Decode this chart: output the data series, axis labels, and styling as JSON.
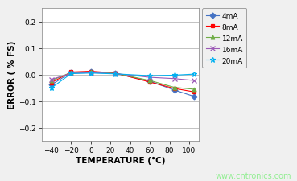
{
  "xlabel": "TEMPERATURE (°C)",
  "ylabel": "ERROR ( % FS)",
  "watermark": "www.cntronics.com",
  "xlim": [
    -50,
    110
  ],
  "ylim": [
    -0.25,
    0.25
  ],
  "yticks": [
    -0.2,
    -0.1,
    0.0,
    0.1,
    0.2
  ],
  "xticks": [
    -40,
    -20,
    0,
    20,
    40,
    60,
    80,
    100
  ],
  "series": [
    {
      "label": "4mA",
      "color": "#4472C4",
      "marker": "D",
      "markersize": 3.5,
      "x": [
        -40,
        -20,
        0,
        25,
        60,
        85,
        105
      ],
      "y": [
        -0.038,
        0.008,
        0.01,
        0.005,
        -0.025,
        -0.058,
        -0.082
      ]
    },
    {
      "label": "8mA",
      "color": "#FF0000",
      "marker": "s",
      "markersize": 3.5,
      "x": [
        -40,
        -20,
        0,
        25,
        60,
        85,
        105
      ],
      "y": [
        -0.03,
        0.01,
        0.013,
        0.006,
        -0.028,
        -0.052,
        -0.065
      ]
    },
    {
      "label": "12mA",
      "color": "#70AD47",
      "marker": "^",
      "markersize": 3.5,
      "x": [
        -40,
        -20,
        0,
        25,
        60,
        85,
        105
      ],
      "y": [
        -0.022,
        0.008,
        0.01,
        0.005,
        -0.022,
        -0.048,
        -0.055
      ]
    },
    {
      "label": "16mA",
      "color": "#9B59B6",
      "marker": "x",
      "markersize": 4,
      "x": [
        -40,
        -20,
        0,
        25,
        60,
        85,
        105
      ],
      "y": [
        -0.018,
        0.005,
        0.008,
        0.004,
        -0.01,
        -0.015,
        -0.022
      ]
    },
    {
      "label": "20mA",
      "color": "#00B0F0",
      "marker": "*",
      "markersize": 5,
      "x": [
        -40,
        -20,
        0,
        25,
        60,
        85,
        105
      ],
      "y": [
        -0.05,
        0.004,
        0.006,
        0.003,
        -0.004,
        -0.002,
        0.002
      ]
    }
  ],
  "background_color": "#F0F0F0",
  "plot_bg_color": "#FFFFFF",
  "grid_color": "#AAAAAA",
  "axis_color": "#808080",
  "tick_label_size": 6.5,
  "axis_label_size": 7.5,
  "legend_fontsize": 6.5
}
